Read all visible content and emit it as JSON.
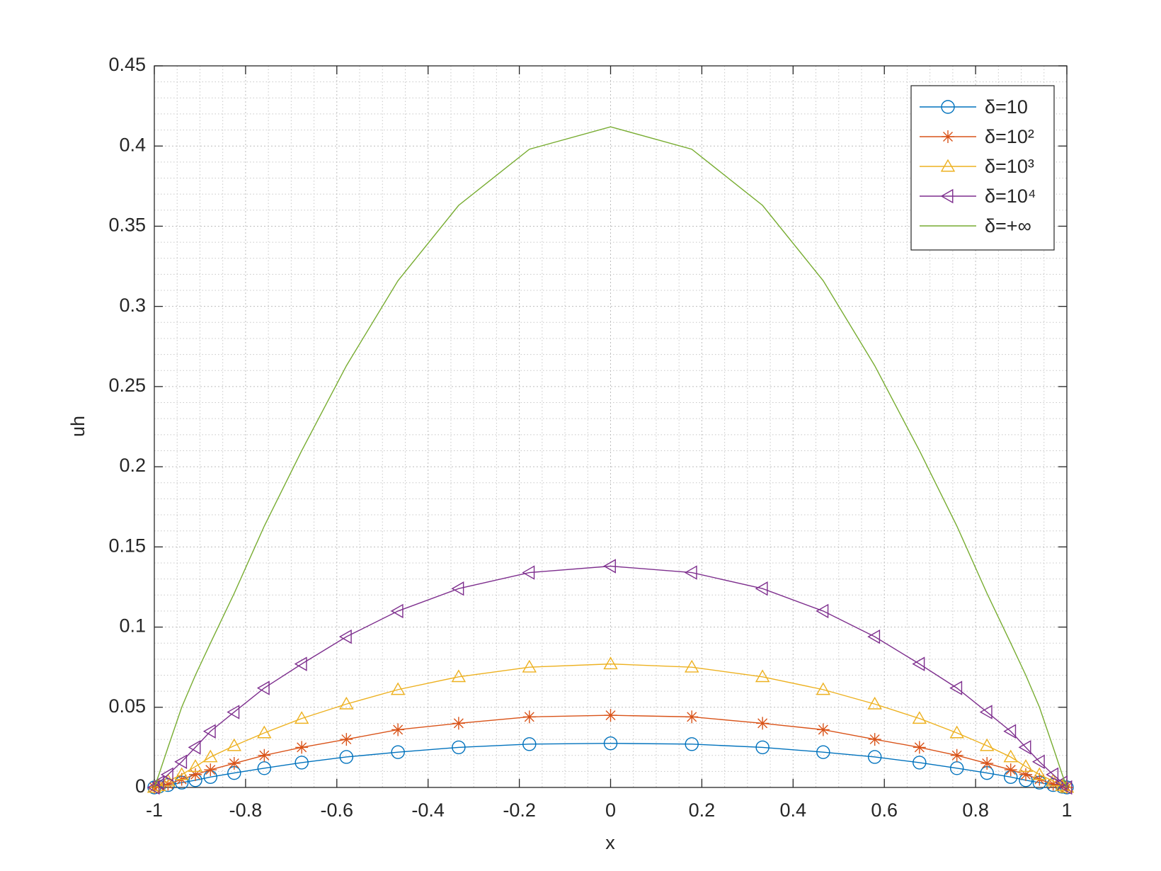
{
  "chart_data": {
    "type": "line",
    "xlabel": "x",
    "ylabel": "uh",
    "x": [
      -1,
      -0.99,
      -0.97,
      -0.94,
      -0.91,
      -0.877,
      -0.825,
      -0.759,
      -0.677,
      -0.579,
      -0.466,
      -0.333,
      -0.178,
      0,
      0.178,
      0.333,
      0.466,
      0.579,
      0.677,
      0.759,
      0.825,
      0.877,
      0.91,
      0.94,
      0.97,
      0.99,
      1
    ],
    "series": [
      {
        "name": "δ=10",
        "color": "#0072bd",
        "marker": "circle",
        "values": [
          0,
          0.0005,
          0.0015,
          0.003,
          0.0045,
          0.0065,
          0.009,
          0.012,
          0.0155,
          0.019,
          0.022,
          0.025,
          0.027,
          0.0275,
          0.027,
          0.025,
          0.022,
          0.019,
          0.0155,
          0.012,
          0.009,
          0.0065,
          0.0045,
          0.003,
          0.0015,
          0.0005,
          0
        ]
      },
      {
        "name": "δ=10²",
        "color": "#d95319",
        "marker": "star",
        "values": [
          0,
          0.001,
          0.002,
          0.005,
          0.008,
          0.011,
          0.015,
          0.02,
          0.025,
          0.03,
          0.036,
          0.04,
          0.044,
          0.045,
          0.044,
          0.04,
          0.036,
          0.03,
          0.025,
          0.02,
          0.015,
          0.011,
          0.008,
          0.005,
          0.002,
          0.001,
          0
        ]
      },
      {
        "name": "δ=10³",
        "color": "#edb120",
        "marker": "triangle-up",
        "values": [
          0,
          0.001,
          0.004,
          0.008,
          0.013,
          0.019,
          0.026,
          0.034,
          0.043,
          0.052,
          0.061,
          0.069,
          0.075,
          0.077,
          0.075,
          0.069,
          0.061,
          0.052,
          0.043,
          0.034,
          0.026,
          0.019,
          0.013,
          0.008,
          0.004,
          0.001,
          0
        ]
      },
      {
        "name": "δ=10⁴",
        "color": "#7e2f8e",
        "marker": "triangle-left",
        "values": [
          0,
          0.003,
          0.008,
          0.016,
          0.025,
          0.035,
          0.047,
          0.062,
          0.077,
          0.094,
          0.11,
          0.124,
          0.134,
          0.138,
          0.134,
          0.124,
          0.11,
          0.094,
          0.077,
          0.062,
          0.047,
          0.035,
          0.025,
          0.016,
          0.008,
          0.003,
          0
        ]
      },
      {
        "name": "δ=+∞",
        "color": "#77ac30",
        "marker": "none",
        "values": [
          0,
          0.008,
          0.025,
          0.05,
          0.07,
          0.09,
          0.121,
          0.163,
          0.21,
          0.263,
          0.316,
          0.363,
          0.398,
          0.412,
          0.398,
          0.363,
          0.316,
          0.263,
          0.21,
          0.163,
          0.121,
          0.09,
          0.07,
          0.05,
          0.025,
          0.008,
          0
        ]
      }
    ],
    "xlim": [
      -1,
      1
    ],
    "ylim": [
      0,
      0.45
    ],
    "xticks": [
      -1,
      -0.8,
      -0.6,
      -0.4,
      -0.2,
      0,
      0.2,
      0.4,
      0.6,
      0.8,
      1
    ],
    "yticks": [
      0,
      0.05,
      0.1,
      0.15,
      0.2,
      0.25,
      0.3,
      0.35,
      0.4,
      0.45
    ],
    "grid": true,
    "minor_grid": true,
    "legend": "upper right"
  }
}
